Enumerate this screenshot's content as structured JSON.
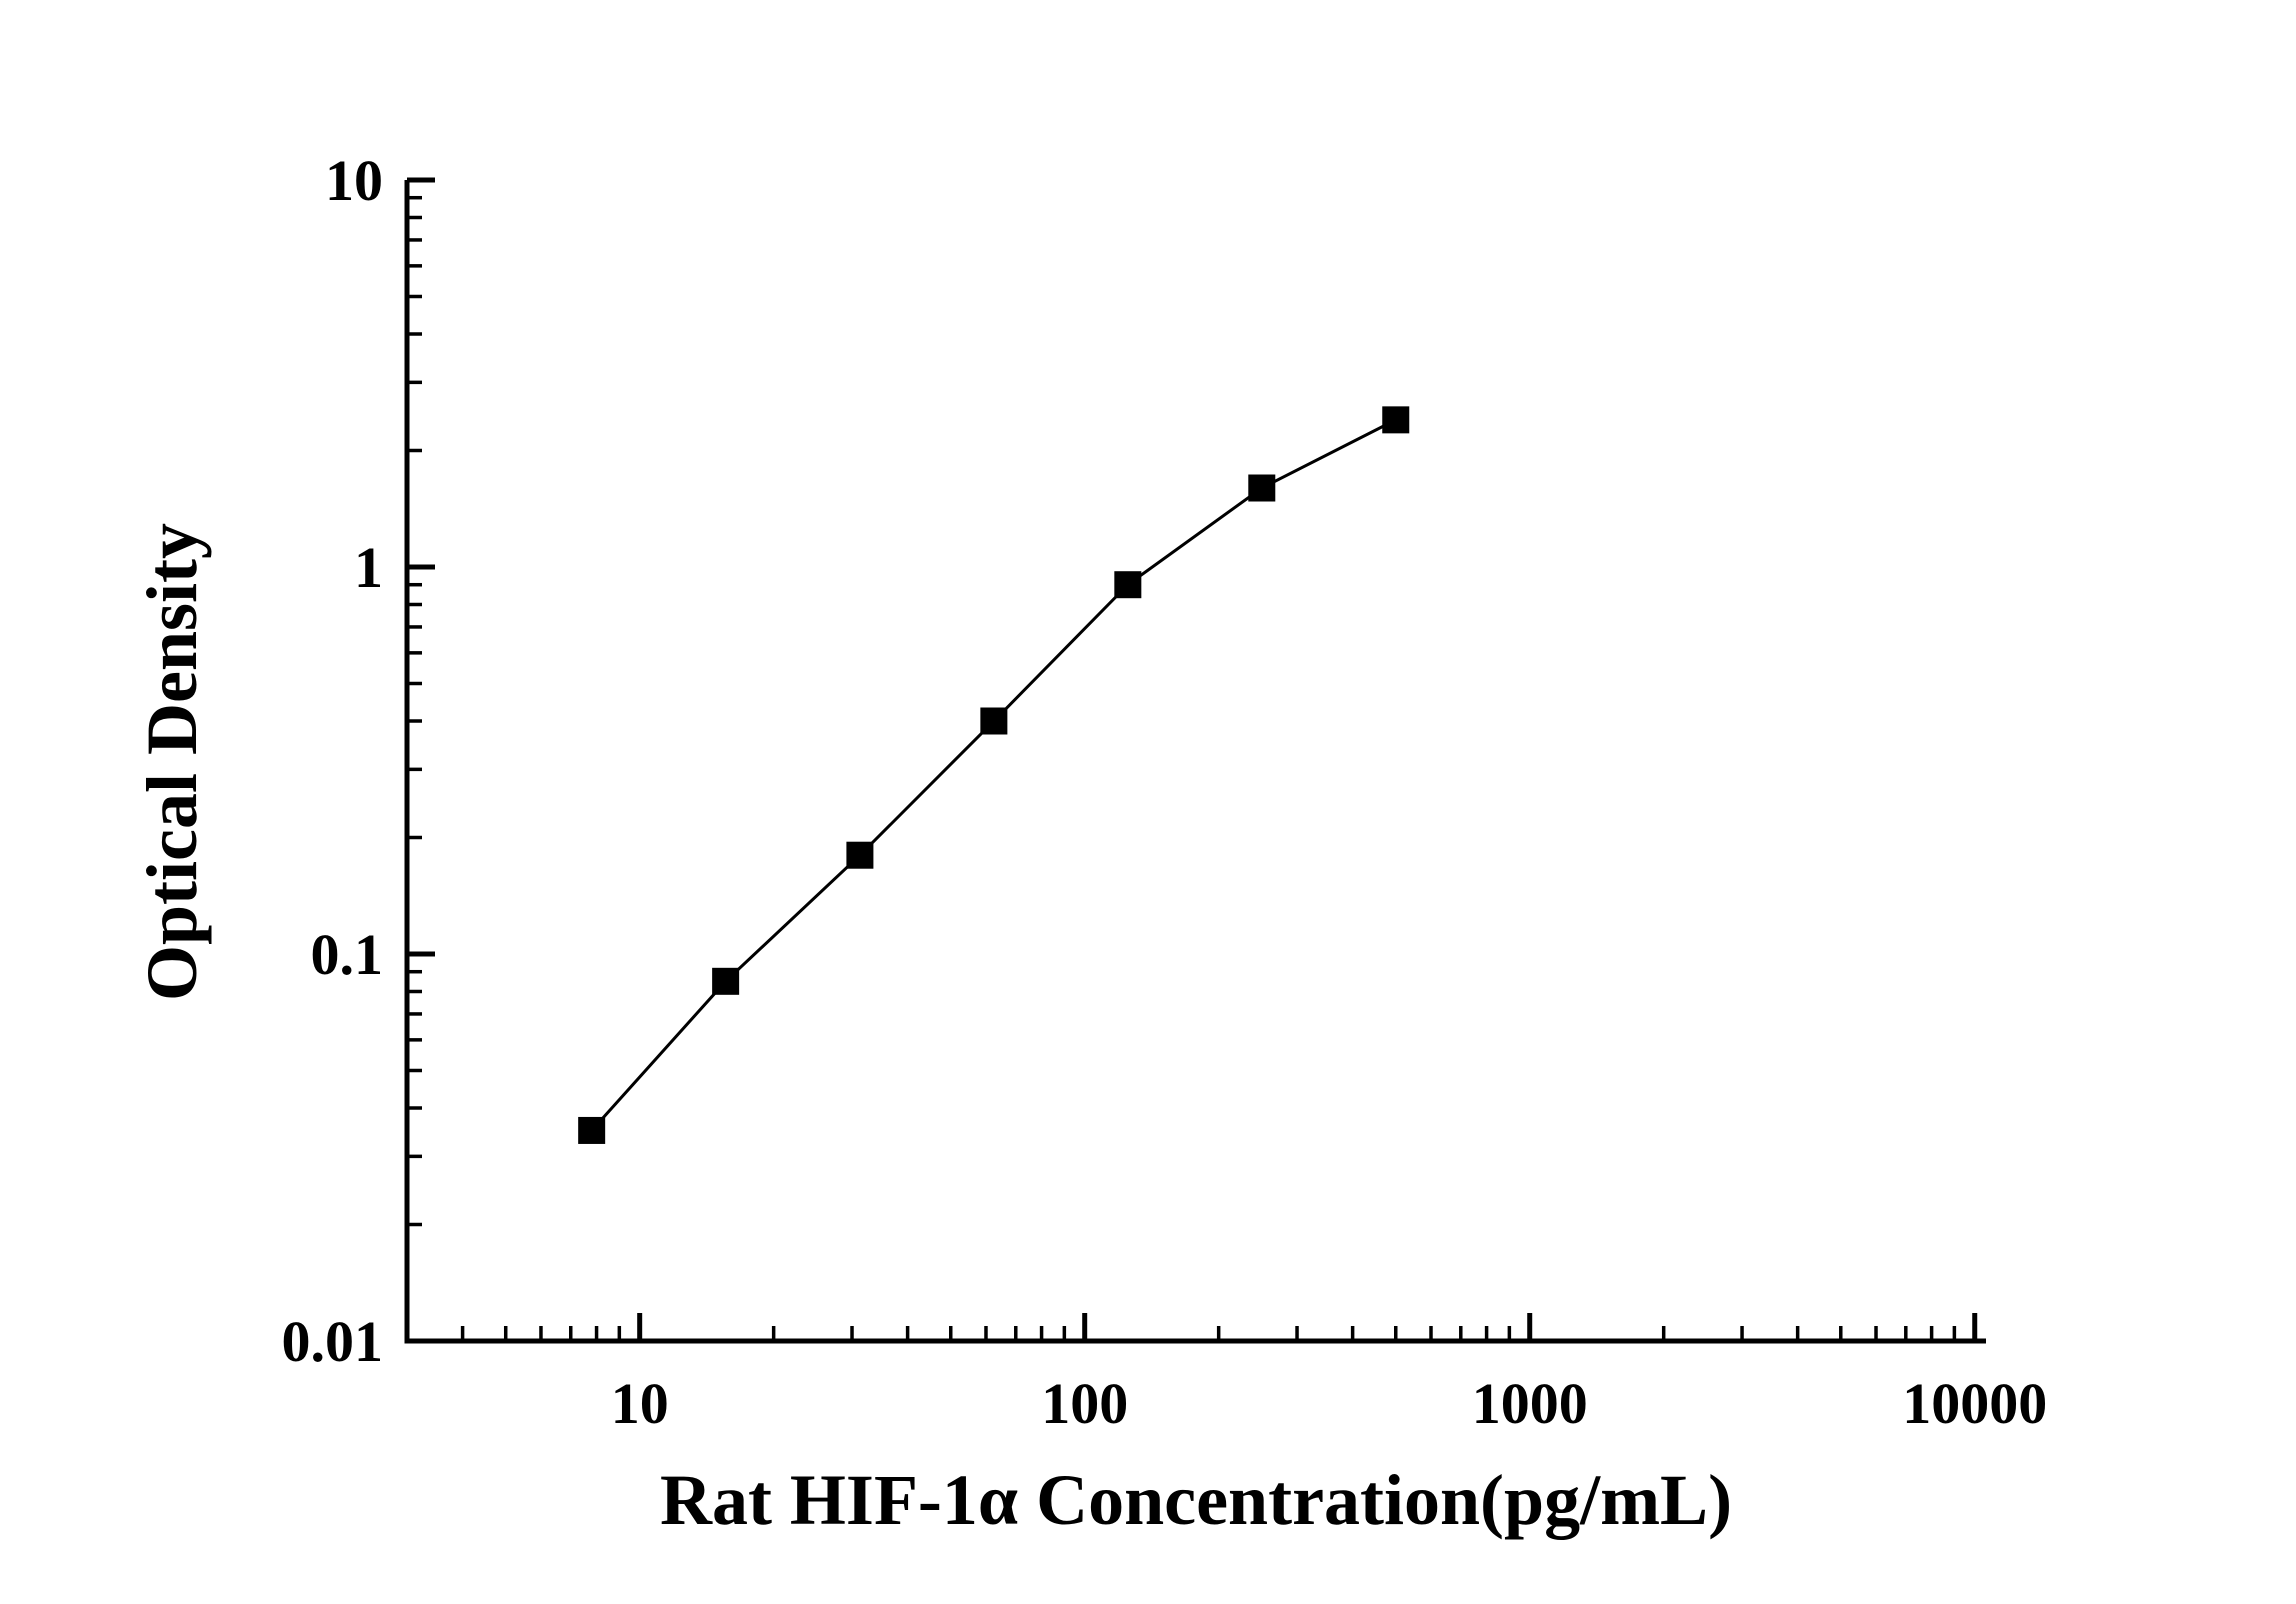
{
  "chart_data": {
    "type": "line",
    "title": "",
    "xlabel": "Rat HIF-1α Concentration(pg/mL)",
    "ylabel": "Optical Density",
    "x_scale": "log",
    "y_scale": "log",
    "xlim": [
      3,
      10600
    ],
    "ylim": [
      0.01,
      10
    ],
    "x": [
      7.8,
      15.6,
      31.25,
      62.5,
      125,
      250,
      500
    ],
    "y": [
      0.035,
      0.085,
      0.18,
      0.4,
      0.9,
      1.6,
      2.4
    ],
    "marker": "square",
    "marker_color": "#000000",
    "line_color": "#000000",
    "axis_color": "#000000",
    "background": "#ffffff",
    "grid": false,
    "legend": false,
    "x_ticks": [
      {
        "value": 10,
        "label": "10"
      },
      {
        "value": 100,
        "label": "100"
      },
      {
        "value": 1000,
        "label": "1000"
      },
      {
        "value": 10000,
        "label": "10000"
      }
    ],
    "y_ticks": [
      {
        "value": 0.01,
        "label": "0.01"
      },
      {
        "value": 0.1,
        "label": "0.1"
      },
      {
        "value": 1,
        "label": "1"
      },
      {
        "value": 10,
        "label": "10"
      }
    ]
  }
}
